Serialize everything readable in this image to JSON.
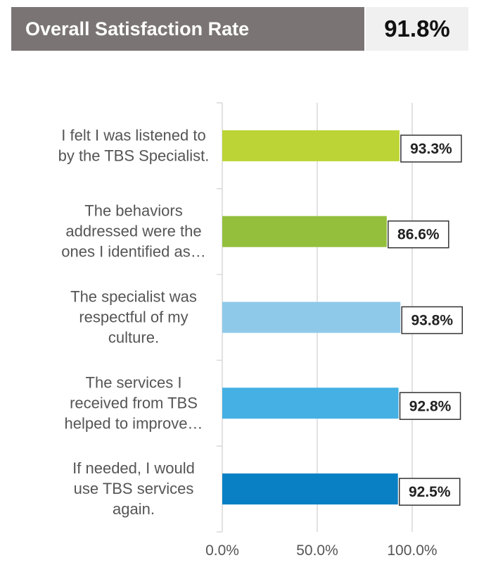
{
  "header": {
    "title": "Overall Satisfaction Rate",
    "value": "91.8%"
  },
  "chart_data": {
    "type": "bar",
    "orientation": "horizontal",
    "categories": [
      [
        "I felt I was listened to",
        "by the TBS Specialist."
      ],
      [
        "The behaviors",
        "addressed were the",
        "ones I identified as…"
      ],
      [
        "The specialist was",
        "respectful of my",
        "culture."
      ],
      [
        "The services I",
        "received from TBS",
        "helped to improve…"
      ],
      [
        "If needed, I would",
        "use TBS services",
        "again."
      ]
    ],
    "values": [
      93.3,
      86.6,
      93.8,
      92.8,
      92.5
    ],
    "value_labels": [
      "93.3%",
      "86.6%",
      "93.8%",
      "92.8%",
      "92.5%"
    ],
    "colors": [
      "#bcd435",
      "#93bf3c",
      "#8ec9ea",
      "#45b0e4",
      "#0980c4"
    ],
    "xlim": [
      0,
      100
    ],
    "xticks": [
      0,
      50,
      100
    ],
    "xtick_labels": [
      "0.0%",
      "50.0%",
      "100.0%"
    ],
    "grid": true,
    "legend": "none"
  }
}
